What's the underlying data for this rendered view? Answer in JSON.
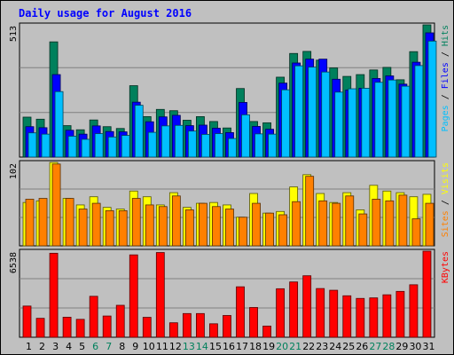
{
  "chart_data": {
    "type": "bar",
    "title": "Daily usage for August 2016",
    "categories": [
      "1",
      "2",
      "3",
      "4",
      "5",
      "6",
      "7",
      "8",
      "9",
      "10",
      "11",
      "12",
      "13",
      "14",
      "15",
      "16",
      "17",
      "18",
      "19",
      "20",
      "21",
      "22",
      "23",
      "24",
      "25",
      "26",
      "27",
      "28",
      "29",
      "30",
      "31"
    ],
    "weekend_days": [
      "6",
      "7",
      "13",
      "14",
      "20",
      "21",
      "27",
      "28"
    ],
    "grid": true,
    "panels": [
      {
        "max_label": "513",
        "ymax": 513,
        "series": [
          {
            "name": "Hits",
            "color": "#00805c",
            "values": [
              155,
              147,
              447,
              122,
              106,
              144,
              118,
              111,
              277,
              157,
              185,
              180,
              143,
              157,
              138,
              113,
              266,
              138,
              133,
              310,
              402,
              410,
              376,
              346,
              313,
              320,
              338,
              348,
              300,
              409,
              513
            ]
          },
          {
            "name": "Files",
            "color": "#0000ff",
            "values": [
              118,
              114,
              320,
              104,
              89,
              121,
              99,
              98,
              213,
              137,
              156,
              162,
              122,
              124,
              112,
              95,
              212,
              119,
              108,
              287,
              365,
              380,
              380,
              302,
              260,
              267,
              305,
              315,
              283,
              368,
              482
            ]
          },
          {
            "name": "Pages",
            "color": "#00bfff",
            "values": [
              94,
              89,
              254,
              81,
              69,
              91,
              78,
              84,
              201,
              96,
              121,
              123,
              101,
              88,
              91,
              72,
              164,
              90,
              89,
              261,
              354,
              349,
              330,
              252,
              265,
              267,
              290,
              299,
              275,
              355,
              450
            ]
          }
        ]
      },
      {
        "max_label": "102",
        "ymax": 102,
        "series": [
          {
            "name": "Visits",
            "color": "#ffff00",
            "values": [
              53,
              55,
              102,
              58,
              50,
              60,
              47,
              45,
              67,
              60,
              50,
              65,
              47,
              52,
              53,
              50,
              35,
              64,
              40,
              42,
              72,
              87,
              64,
              53,
              65,
              44,
              74,
              67,
              65,
              60,
              63
            ]
          },
          {
            "name": "Sites",
            "color": "#ff8000",
            "values": [
              57,
              58,
              100,
              58,
              45,
              52,
              43,
              43,
              58,
              50,
              48,
              61,
              44,
              52,
              48,
              45,
              35,
              52,
              40,
              38,
              54,
              85,
              55,
              52,
              61,
              39,
              57,
              55,
              62,
              33,
              52
            ]
          }
        ]
      },
      {
        "max_label": "6538",
        "ymax": 6538,
        "series": [
          {
            "name": "KBytes",
            "color": "#ff0000",
            "values": [
              2370,
              1438,
              6380,
              1522,
              1360,
              3110,
              1613,
              2427,
              6256,
              1513,
              6434,
              1100,
              1800,
              1800,
              1023,
              1653,
              3832,
              2260,
              850,
              3684,
              4200,
              4671,
              3700,
              3569,
              3150,
              2950,
              2990,
              3225,
              3483,
              3986,
              6538
            ]
          }
        ]
      }
    ],
    "right_labels": [
      [
        {
          "text": "Pages",
          "color": "#00bfff"
        },
        {
          "text": " / ",
          "color": "#000000"
        },
        {
          "text": "Files",
          "color": "#0000ff"
        },
        {
          "text": " / ",
          "color": "#000000"
        },
        {
          "text": "Hits",
          "color": "#00805c"
        }
      ],
      [
        {
          "text": "Sites",
          "color": "#ff8000"
        },
        {
          "text": " / ",
          "color": "#000000"
        },
        {
          "text": "Visits",
          "color": "#ffff00"
        }
      ],
      [
        {
          "text": "KBytes",
          "color": "#ff0000"
        }
      ]
    ],
    "colors": {
      "title": "#0000ff",
      "weekday_tick": "#000000",
      "weekend_tick": "#00805c",
      "background": "#c0c0c0",
      "plot_bg": "#c0c0c0"
    }
  }
}
